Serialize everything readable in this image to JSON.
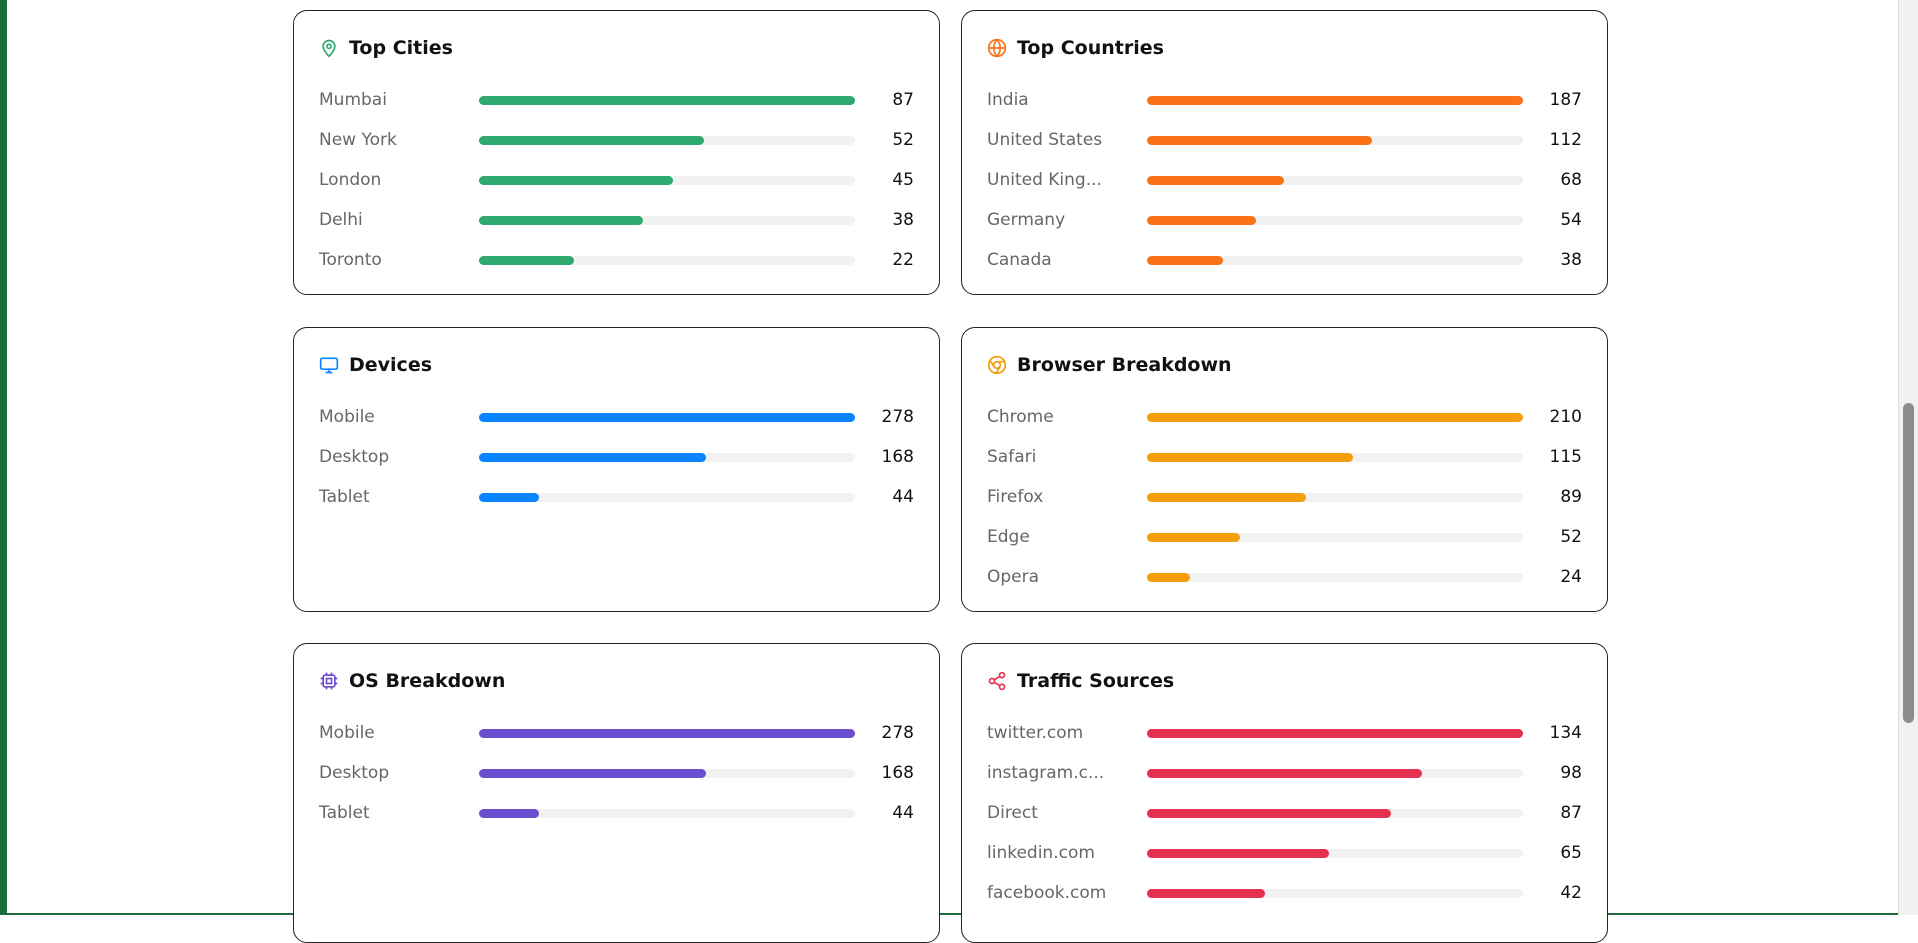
{
  "cards": [
    {
      "title": "Top Cities",
      "color": "#2eaa6e",
      "rows": [
        {
          "label": "Mumbai",
          "value": 87
        },
        {
          "label": "New York",
          "value": 52
        },
        {
          "label": "London",
          "value": 45
        },
        {
          "label": "Delhi",
          "value": 38
        },
        {
          "label": "Toronto",
          "value": 22
        }
      ]
    },
    {
      "title": "Top Countries",
      "color": "#f97316",
      "rows": [
        {
          "label": "India",
          "value": 187
        },
        {
          "label": "United States",
          "value": 112
        },
        {
          "label": "United King...",
          "value": 68
        },
        {
          "label": "Germany",
          "value": 54
        },
        {
          "label": "Canada",
          "value": 38
        }
      ]
    },
    {
      "title": "Devices",
      "color": "#0a84ff",
      "rows": [
        {
          "label": "Mobile",
          "value": 278
        },
        {
          "label": "Desktop",
          "value": 168
        },
        {
          "label": "Tablet",
          "value": 44
        }
      ]
    },
    {
      "title": "Browser Breakdown",
      "color": "#f59e0b",
      "rows": [
        {
          "label": "Chrome",
          "value": 210
        },
        {
          "label": "Safari",
          "value": 115
        },
        {
          "label": "Firefox",
          "value": 89
        },
        {
          "label": "Edge",
          "value": 52
        },
        {
          "label": "Opera",
          "value": 24
        }
      ]
    },
    {
      "title": "OS Breakdown",
      "color": "#6b4fcf",
      "rows": [
        {
          "label": "Mobile",
          "value": 278
        },
        {
          "label": "Desktop",
          "value": 168
        },
        {
          "label": "Tablet",
          "value": 44
        }
      ]
    },
    {
      "title": "Traffic Sources",
      "color": "#e5304f",
      "rows": [
        {
          "label": "twitter.com",
          "value": 134
        },
        {
          "label": "instagram.c...",
          "value": 98
        },
        {
          "label": "Direct",
          "value": 87
        },
        {
          "label": "linkedin.com",
          "value": 65
        },
        {
          "label": "facebook.com",
          "value": 42
        }
      ]
    }
  ]
}
